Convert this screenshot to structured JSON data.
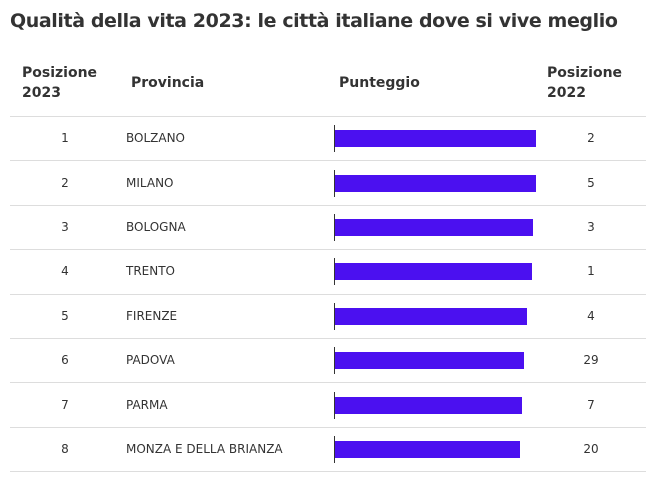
{
  "chart_data": {
    "type": "table-bar",
    "title": "Qualità della vita 2023: le città italiane dove si vive meglio",
    "headers": [
      "Posizione 2023",
      "Provincia",
      "Punteggio",
      "Posizione 2022"
    ],
    "color": "#4b10f0",
    "xlim": [
      0,
      202
    ],
    "rows": [
      {
        "rank": "1",
        "name": "BOLZANO",
        "score": 202,
        "prev": "2"
      },
      {
        "rank": "2",
        "name": "MILANO",
        "score": 202,
        "prev": "5"
      },
      {
        "rank": "3",
        "name": "BOLOGNA",
        "score": 199,
        "prev": "3"
      },
      {
        "rank": "4",
        "name": "TRENTO",
        "score": 198,
        "prev": "1"
      },
      {
        "rank": "5",
        "name": "FIRENZE",
        "score": 193,
        "prev": "4"
      },
      {
        "rank": "6",
        "name": "PADOVA",
        "score": 190,
        "prev": "29"
      },
      {
        "rank": "7",
        "name": "PARMA",
        "score": 188,
        "prev": "7"
      },
      {
        "rank": "8",
        "name": "MONZA E DELLA BRIANZA",
        "score": 186,
        "prev": "20"
      }
    ]
  }
}
